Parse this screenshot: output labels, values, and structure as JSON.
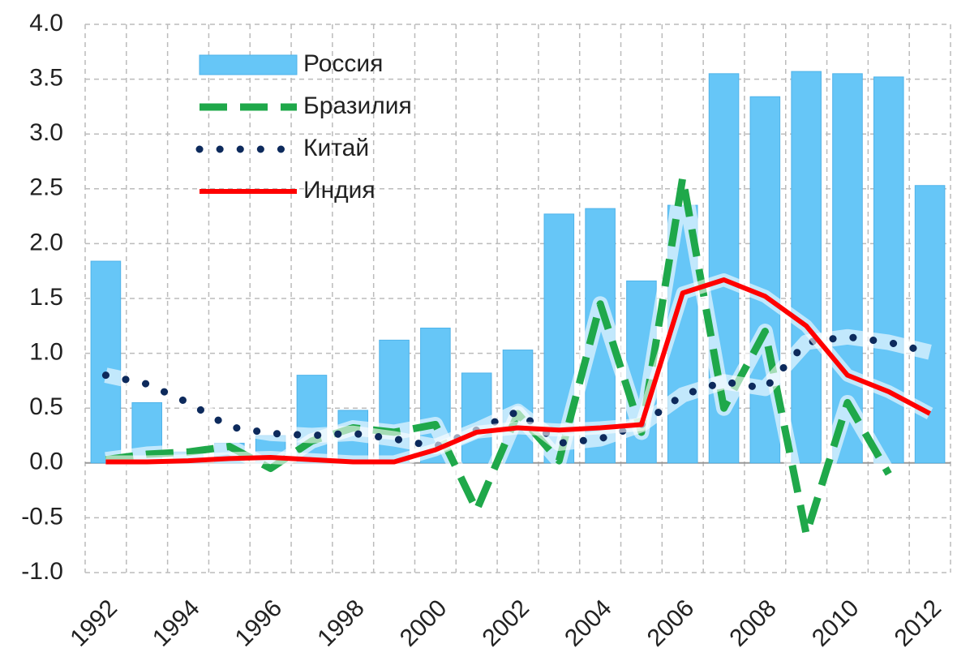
{
  "chart_data": {
    "type": "bar_line",
    "categories": [
      "1992",
      null,
      "1994",
      null,
      "1996",
      null,
      "1998",
      null,
      "2000",
      null,
      "2002",
      null,
      "2004",
      null,
      "2006",
      null,
      "2008",
      null,
      "2010",
      null,
      "2012"
    ],
    "series": [
      {
        "name": "Россия",
        "type": "bar",
        "color": "#66c6f7",
        "values": [
          1.84,
          0.55,
          0.1,
          0.18,
          0.25,
          0.8,
          0.48,
          1.12,
          1.23,
          0.82,
          1.03,
          2.27,
          2.32,
          1.66,
          2.35,
          3.55,
          3.34,
          3.57,
          3.55,
          3.52,
          2.53
        ]
      },
      {
        "name": "Бразилия",
        "type": "line",
        "style": "dashed",
        "color": "#1fa84a",
        "values": [
          0.03,
          0.08,
          0.1,
          0.15,
          -0.05,
          0.2,
          0.32,
          0.28,
          0.35,
          -0.43,
          0.45,
          0.02,
          1.45,
          0.28,
          2.6,
          0.5,
          1.2,
          -0.65,
          0.55,
          -0.1,
          null
        ]
      },
      {
        "name": "Китай",
        "type": "line",
        "style": "dotted",
        "color": "#0d2a5c",
        "values": [
          0.8,
          0.72,
          0.55,
          0.33,
          0.27,
          0.25,
          0.27,
          0.22,
          0.15,
          0.3,
          0.47,
          0.18,
          0.22,
          0.35,
          0.62,
          0.74,
          0.68,
          1.1,
          1.15,
          1.1,
          1.01
        ]
      },
      {
        "name": "Индия",
        "type": "line",
        "style": "solid",
        "color": "#ff0000",
        "values": [
          0.01,
          0.01,
          0.02,
          0.04,
          0.05,
          0.03,
          0.01,
          0.01,
          0.12,
          0.28,
          0.32,
          0.3,
          0.32,
          0.35,
          1.55,
          1.67,
          1.52,
          1.25,
          0.8,
          0.65,
          0.45
        ]
      }
    ],
    "ylim": [
      -1,
      4
    ],
    "yticks": [
      {
        "value": -1,
        "label": "-1.0"
      },
      -0.5,
      {
        "value": 0,
        "label": "0.0"
      },
      0.5,
      {
        "value": 1,
        "label": "1.0"
      },
      1.5,
      {
        "value": 2,
        "label": "2.0"
      },
      2.5,
      {
        "value": 3,
        "label": "3.0"
      },
      3.5,
      {
        "value": 4,
        "label": "4.0"
      }
    ],
    "grid": true,
    "legend": "upper left"
  }
}
